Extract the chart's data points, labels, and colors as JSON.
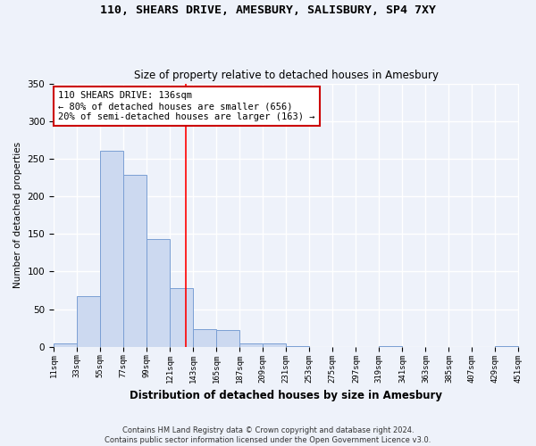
{
  "title": "110, SHEARS DRIVE, AMESBURY, SALISBURY, SP4 7XY",
  "subtitle": "Size of property relative to detached houses in Amesbury",
  "xlabel": "Distribution of detached houses by size in Amesbury",
  "ylabel": "Number of detached properties",
  "bins": [
    11,
    33,
    55,
    77,
    99,
    121,
    143,
    165,
    187,
    209,
    231,
    253,
    275,
    297,
    319,
    341,
    363,
    385,
    407,
    429,
    451
  ],
  "counts": [
    5,
    67,
    261,
    228,
    143,
    78,
    23,
    22,
    5,
    4,
    1,
    0,
    0,
    0,
    1,
    0,
    0,
    0,
    0,
    1
  ],
  "bar_color": "#ccd9f0",
  "bar_edge_color": "#7a9fd4",
  "bg_color": "#eef2fa",
  "red_line_x": 136,
  "annotation_text": "110 SHEARS DRIVE: 136sqm\n← 80% of detached houses are smaller (656)\n20% of semi-detached houses are larger (163) →",
  "annotation_box_color": "#ffffff",
  "annotation_box_edge_color": "#cc0000",
  "footer_line1": "Contains HM Land Registry data © Crown copyright and database right 2024.",
  "footer_line2": "Contains public sector information licensed under the Open Government Licence v3.0.",
  "ylim": [
    0,
    350
  ],
  "yticks": [
    0,
    50,
    100,
    150,
    200,
    250,
    300,
    350
  ]
}
